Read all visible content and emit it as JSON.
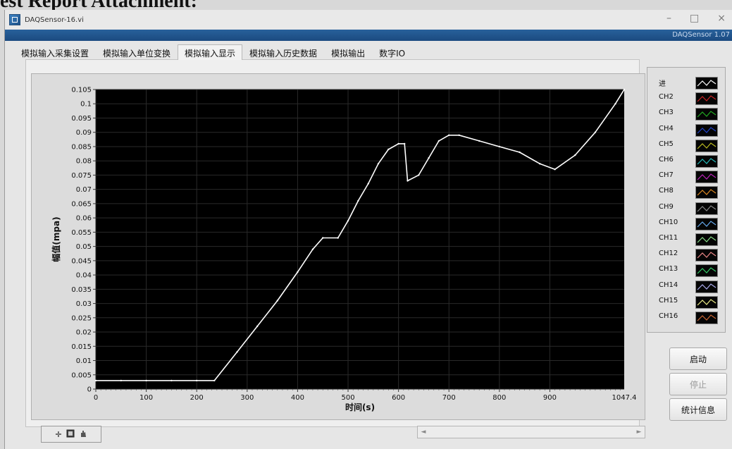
{
  "document": {
    "heading": "est Report Attachment:"
  },
  "window": {
    "title": "DAQSensor-16.vi",
    "version_label": "DAQSensor 1.07",
    "controls": {
      "minimize": "–",
      "maximize": "□",
      "close": "×"
    }
  },
  "tabs": [
    {
      "label": "模拟输入采集设置"
    },
    {
      "label": "模拟输入单位变换"
    },
    {
      "label": "模拟输入显示"
    },
    {
      "label": "模拟输入历史数据"
    },
    {
      "label": "模拟输出"
    },
    {
      "label": "数字IO"
    }
  ],
  "active_tab": 2,
  "chart_data": {
    "type": "line",
    "xlabel": "时间(s)",
    "ylabel": "幅值(mpa)",
    "xlim": [
      0,
      1047.4
    ],
    "ylim": [
      0,
      0.105
    ],
    "x_ticks": [
      0,
      100,
      200,
      300,
      400,
      500,
      600,
      700,
      800,
      900
    ],
    "x_end_label": "1047.4",
    "y_ticks": [
      "0",
      "0.005",
      "0.01",
      "0.015",
      "0.02",
      "0.025",
      "0.03",
      "0.035",
      "0.04",
      "0.045",
      "0.05",
      "0.055",
      "0.06",
      "0.065",
      "0.07",
      "0.075",
      "0.08",
      "0.085",
      "0.09",
      "0.095",
      "0.1",
      "0.105"
    ],
    "grid": true,
    "background": "#000000",
    "series": [
      {
        "color": "#ffffff",
        "x": [
          0,
          50,
          100,
          150,
          200,
          235,
          280,
          320,
          360,
          400,
          430,
          450,
          480,
          500,
          520,
          540,
          560,
          580,
          600,
          612,
          618,
          640,
          660,
          680,
          700,
          720,
          760,
          800,
          840,
          880,
          910,
          950,
          990,
          1030,
          1047.4
        ],
        "y": [
          0.003,
          0.003,
          0.003,
          0.003,
          0.003,
          0.003,
          0.013,
          0.022,
          0.031,
          0.041,
          0.049,
          0.053,
          0.053,
          0.059,
          0.066,
          0.072,
          0.079,
          0.084,
          0.086,
          0.086,
          0.073,
          0.075,
          0.081,
          0.087,
          0.089,
          0.089,
          0.087,
          0.085,
          0.083,
          0.079,
          0.077,
          0.082,
          0.09,
          0.1,
          0.105
        ]
      }
    ]
  },
  "legend": {
    "items": [
      {
        "label": "进",
        "color": "#ffffff"
      },
      {
        "label": "CH2",
        "color": "#cc2222"
      },
      {
        "label": "CH3",
        "color": "#22aa22"
      },
      {
        "label": "CH4",
        "color": "#2244cc"
      },
      {
        "label": "CH5",
        "color": "#bbbb22"
      },
      {
        "label": "CH6",
        "color": "#22bbbb"
      },
      {
        "label": "CH7",
        "color": "#bb22bb"
      },
      {
        "label": "CH8",
        "color": "#dd8822"
      },
      {
        "label": "CH9",
        "color": "#888888"
      },
      {
        "label": "CH10",
        "color": "#66aaee"
      },
      {
        "label": "CH11",
        "color": "#88dd88"
      },
      {
        "label": "CH12",
        "color": "#ee8888"
      },
      {
        "label": "CH13",
        "color": "#33cc66"
      },
      {
        "label": "CH14",
        "color": "#aaaaee"
      },
      {
        "label": "CH15",
        "color": "#eeee88"
      },
      {
        "label": "CH16",
        "color": "#cc6633"
      }
    ]
  },
  "buttons": {
    "start": "启动",
    "stop": "停止",
    "stats": "统计信息"
  },
  "graph_palette": {
    "cursor_icon": "✛",
    "zoom_icon": "zoom-icon",
    "pan_icon": "hand-icon"
  },
  "scrollbar": {
    "left_arrow": "◄",
    "right_arrow": "►"
  }
}
